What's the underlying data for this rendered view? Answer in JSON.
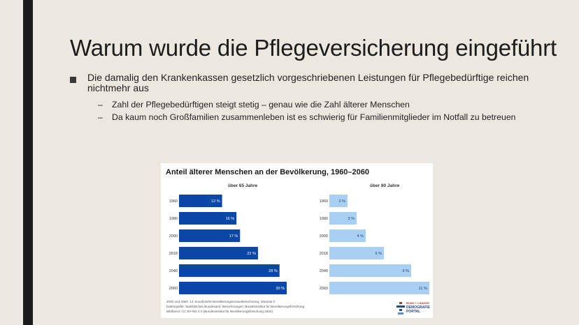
{
  "slide": {
    "title": "Warum wurde die Pflegeversicherung eingeführt",
    "bullet": "Die damalig den Krankenkassen gesetzlich vorgeschriebenen Leistungen für Pflegebedürftige reichen nichtmehr aus",
    "subbullets": [
      "Zahl der Pflegebedürftigen steigt stetig – genau wie die Zahl älterer Menschen",
      "Da kaum noch Großfamilien zusammenleben ist es schwierig für Familienmitglieder im Notfall zu betreuen"
    ],
    "dash": "–"
  },
  "chart_data": {
    "type": "bar",
    "title": "Anteil älterer Menschen an der Bevölkerung, 1960–2060",
    "categories": [
      "1960",
      "1980",
      "2000",
      "2018",
      "2040",
      "2060"
    ],
    "series": [
      {
        "name": "über 65 Jahre",
        "values": [
          12,
          16,
          17,
          22,
          28,
          30
        ],
        "labels": [
          "12 %",
          "16 %",
          "17 %",
          "22 %",
          "28 %",
          "30 %"
        ],
        "color": "#0b47a6"
      },
      {
        "name": "über 80 Jahre",
        "values": [
          2,
          3,
          4,
          6,
          9,
          11
        ],
        "labels": [
          "2 %",
          "3 %",
          "4 %",
          "6 %",
          "9 %",
          "11 %"
        ],
        "color": "#a9d0f2"
      }
    ],
    "notes": [
      "2040 und 2060: 14. koordinierte Bevölkerungsvorausberechnung, Variante 2",
      "Datenquelle: Statistisches Bundesamt; Berechnungen: Bundesinstitut für Bevölkerungsforschung",
      "Bildlizenz: CC BY-ND 4.0 (Bundesinstitut für Bevölkerungsforschung 2020)"
    ],
    "logo": [
      "BUND + LÄNDER",
      "DEMOGRAFIE",
      "PORTAL"
    ]
  }
}
